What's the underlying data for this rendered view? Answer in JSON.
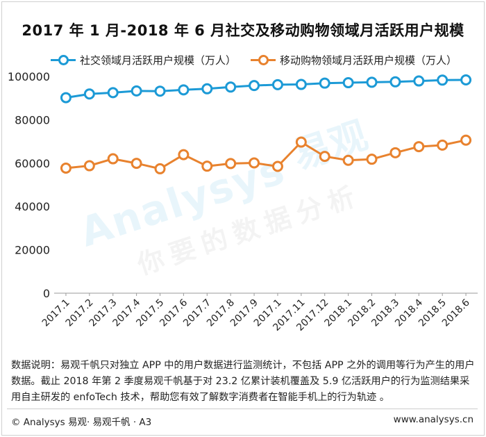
{
  "title": "2017 年 1 月-2018 年 6 月社交及移动购物领域月活跃用户规模",
  "watermark": {
    "brand": "Analysys",
    "brand_cn": "易观",
    "slogan": "你要的数据分析"
  },
  "note": "数据说明：易观千帆只对独立 APP 中的用户数据进行监测统计，不包括 APP 之外的调用等行为产生的用户数据。截止 2018 年第 2 季度易观千帆基于对 23.2 亿累计装机覆盖及 5.9 亿活跃用户的行为监测结果采用自主研发的 enfoTech 技术，帮助您有效了解数字消费者在智能手机上的行为轨迹 。",
  "footer": {
    "left": "© Analysys 易观· 易观千帆 · A3",
    "right": "www.analysys.cn"
  },
  "colors": {
    "social": "#1c9ad6",
    "shopping": "#e8822e"
  },
  "chart_data": {
    "type": "line",
    "title": "2017 年 1 月-2018 年 6 月社交及移动购物领域月活跃用户规模",
    "categories": [
      "2017.1",
      "2017.2",
      "2017.3",
      "2017.4",
      "2017.5",
      "2017.6",
      "2017.7",
      "2017.8",
      "2017.9",
      "2017.1",
      "2017.11",
      "2017.12",
      "2018.1",
      "2018.2",
      "2018.3",
      "2018.4",
      "2018.5",
      "2018.6"
    ],
    "series": [
      {
        "name": "社交领域月活跃用户规模（万人）",
        "color": "#1c9ad6",
        "values": [
          90200,
          91900,
          92500,
          93300,
          93200,
          93800,
          94300,
          95100,
          95800,
          96200,
          96300,
          96900,
          97100,
          97300,
          97500,
          97900,
          98300,
          98400
        ]
      },
      {
        "name": "移动购物领域月活跃用户规模（万人）",
        "color": "#e8822e",
        "values": [
          57700,
          58800,
          62000,
          59900,
          57400,
          63900,
          58600,
          59800,
          60100,
          58500,
          69700,
          63100,
          61300,
          61800,
          64800,
          67600,
          68300,
          70600
        ]
      }
    ],
    "ylim": [
      0,
      100000
    ],
    "yticks": [
      "0",
      "20000",
      "40000",
      "60000",
      "80000",
      "100000"
    ],
    "grid": false,
    "legend": "top"
  }
}
